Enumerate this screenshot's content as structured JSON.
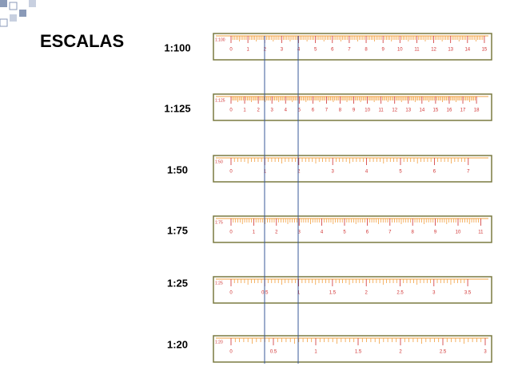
{
  "title": "ESCALAS",
  "rulers": [
    {
      "scale": "1:100",
      "tag": "1:100",
      "labels": [
        "0",
        "1",
        "2",
        "3",
        "4",
        "5",
        "6",
        "7",
        "8",
        "9",
        "10",
        "11",
        "12",
        "13",
        "14",
        "15"
      ]
    },
    {
      "scale": "1:125",
      "tag": "1:125",
      "labels": [
        "0",
        "1",
        "2",
        "3",
        "4",
        "5",
        "6",
        "7",
        "8",
        "9",
        "10",
        "11",
        "12",
        "13",
        "14",
        "15",
        "16",
        "17",
        "18"
      ]
    },
    {
      "scale": "1:50",
      "tag": "1:50",
      "labels": [
        "0",
        "1",
        "2",
        "3",
        "4",
        "5",
        "6",
        "7"
      ]
    },
    {
      "scale": "1:75",
      "tag": "1:75",
      "labels": [
        "0",
        "1",
        "2",
        "3",
        "4",
        "5",
        "6",
        "7",
        "8",
        "9",
        "10",
        "11"
      ]
    },
    {
      "scale": "1:25",
      "tag": "1:25",
      "labels": [
        "0",
        "0.5",
        "1",
        "1.5",
        "2",
        "2.5",
        "3",
        "3.5"
      ]
    },
    {
      "scale": "1:20",
      "tag": "1:20",
      "labels": [
        "0",
        "0.5",
        "1",
        "1.5",
        "2",
        "2.5",
        "3"
      ]
    }
  ]
}
